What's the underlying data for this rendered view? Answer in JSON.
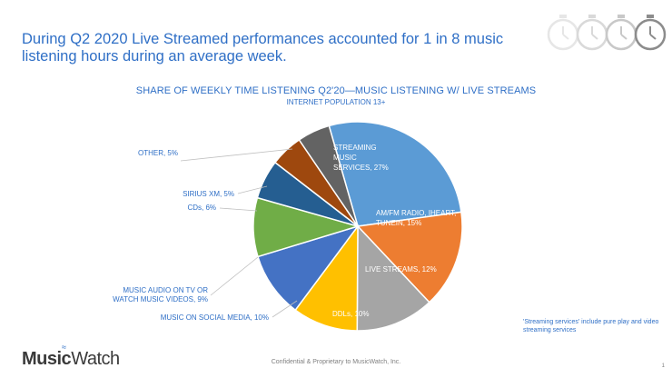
{
  "headline": "During Q2 2020 Live Streamed performances accounted for 1 in 8 music listening hours during an average week.",
  "footnote": "'Streaming services' include pure play and video streaming services",
  "confidential": "Confidential & Proprietary to MusicWatch, Inc.",
  "page_number": "1",
  "logo": {
    "bold": "Music",
    "light": "Watch"
  },
  "icons": [
    "stopwatch-icon",
    "stopwatch-icon",
    "stopwatch-icon",
    "stopwatch-icon"
  ],
  "chart_data": {
    "type": "pie",
    "title": "SHARE OF WEEKLY TIME LISTENING Q2'20—MUSIC LISTENING W/ LIVE STREAMS",
    "subtitle": "INTERNET POPULATION 13+",
    "start_angle_deg": -16,
    "slices": [
      {
        "label": "STREAMING MUSIC SERVICES, 27%",
        "value": 27,
        "color": "#5b9bd5",
        "label_position": "inside"
      },
      {
        "label": "AM/FM RADIO, IHEART, TUNEIN, 15%",
        "value": 15,
        "color": "#ed7d31",
        "label_position": "inside"
      },
      {
        "label": "LIVE STREAMS, 12%",
        "value": 12,
        "color": "#a5a5a5",
        "label_position": "inside"
      },
      {
        "label": "DDLs, 10%",
        "value": 10,
        "color": "#ffc000",
        "label_position": "inside"
      },
      {
        "label": "MUSIC ON SOCIAL MEDIA, 10%",
        "value": 10,
        "color": "#4472c4",
        "label_position": "outside"
      },
      {
        "label": "MUSIC AUDIO ON TV OR WATCH MUSIC VIDEOS, 9%",
        "value": 9,
        "color": "#70ad47",
        "label_position": "outside"
      },
      {
        "label": "CDs, 6%",
        "value": 6,
        "color": "#255e91",
        "label_position": "outside"
      },
      {
        "label": "SIRIUS XM, 5%",
        "value": 5,
        "color": "#9e480e",
        "label_position": "outside"
      },
      {
        "label": "OTHER, 5%",
        "value": 5,
        "color": "#636363",
        "label_position": "outside"
      }
    ]
  }
}
